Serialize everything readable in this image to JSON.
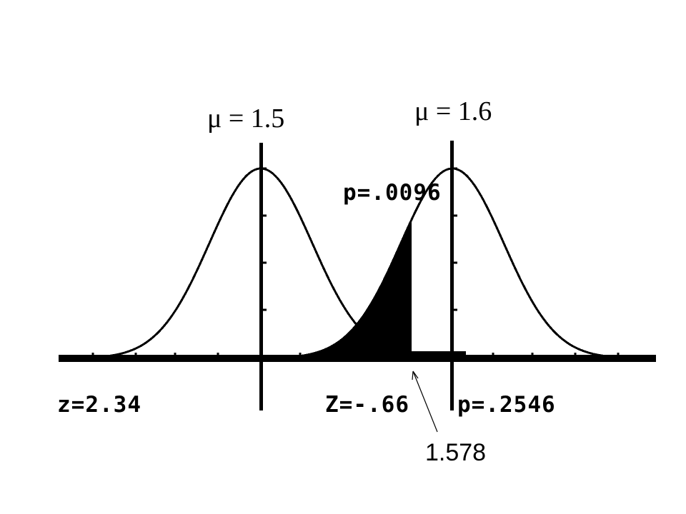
{
  "labels": {
    "mu_left": "μ = 1.5",
    "mu_right": "μ = 1.6",
    "p_shaded": "p=.0096",
    "z_left": "z=2.34",
    "z_right": "Z=-.66",
    "p_right": "p=.2546",
    "cutoff": "1.578"
  }
}
